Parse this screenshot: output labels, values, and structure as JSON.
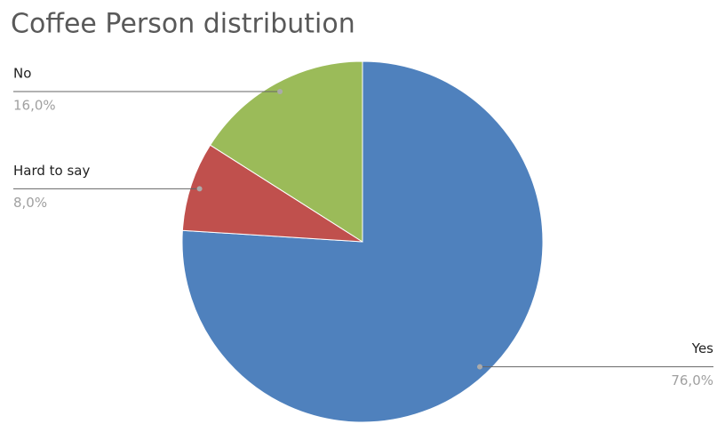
{
  "chart_data": {
    "type": "pie",
    "title": "Coffee Person distribution",
    "categories": [
      "Yes",
      "Hard to say",
      "No"
    ],
    "values": [
      76,
      8,
      16
    ],
    "value_labels": [
      "76,0%",
      "8,0%",
      "16,0%"
    ],
    "colors": [
      "#4f81bd",
      "#c0504d",
      "#9bbb59"
    ]
  }
}
